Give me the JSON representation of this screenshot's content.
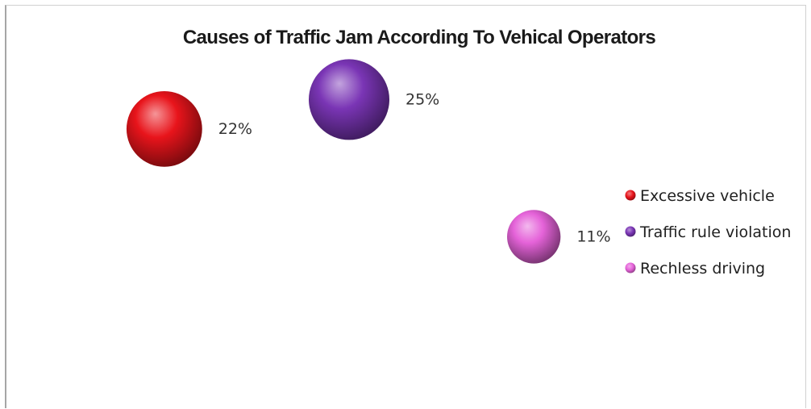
{
  "chart_data": {
    "type": "scatter",
    "title": "Causes of Traffic Jam According To Vehical Operators",
    "xlabel": "",
    "ylabel": "",
    "grid": false,
    "legend_position": "right",
    "series": [
      {
        "name": "Excessive vehicle",
        "x": 1,
        "y": 22,
        "size": 22,
        "label": "22%",
        "color": "#e8141b"
      },
      {
        "name": "Traffic rule violation",
        "x": 2,
        "y": 25,
        "size": 25,
        "label": "25%",
        "color": "#7a35b5"
      },
      {
        "name": "Rechless driving",
        "x": 3,
        "y": 11,
        "size": 11,
        "label": "11%",
        "color": "#e563d9"
      }
    ]
  }
}
